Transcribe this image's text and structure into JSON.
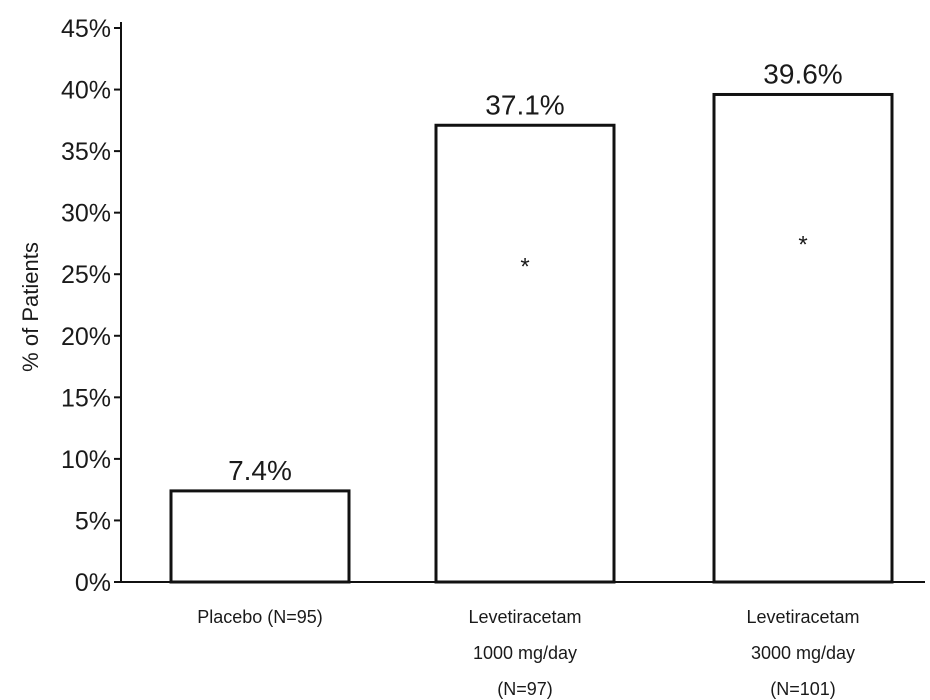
{
  "chart_data": {
    "type": "bar",
    "categories": [
      [
        "Placebo (N=95)"
      ],
      [
        "Levetiracetam",
        "1000 mg/day",
        "(N=97)"
      ],
      [
        "Levetiracetam",
        "3000 mg/day",
        "(N=101)"
      ]
    ],
    "values": [
      7.4,
      37.1,
      39.6
    ],
    "data_labels": [
      "7.4%",
      "37.1%",
      "39.6%"
    ],
    "markers": [
      "",
      "*",
      "*"
    ],
    "ylabel": "% of Patients",
    "ylim": [
      0,
      45
    ],
    "yticks": [
      0,
      5,
      10,
      15,
      20,
      25,
      30,
      35,
      40,
      45
    ],
    "ytick_labels": [
      "0%",
      "5%",
      "10%",
      "15%",
      "20%",
      "25%",
      "30%",
      "35%",
      "40%",
      "45%"
    ],
    "grid": false,
    "colors": {
      "bar_fill": "#ffffff",
      "bar_stroke": "#111111",
      "axis": "#111111",
      "text": "#1a1a1a"
    }
  }
}
